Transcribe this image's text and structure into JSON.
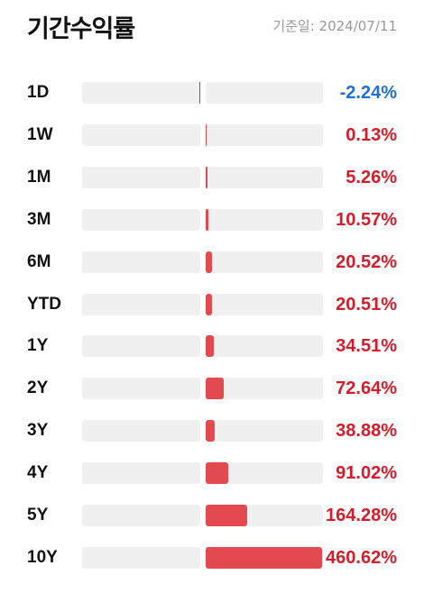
{
  "header": {
    "title": "기간수익률",
    "date": "기준일: 2024/07/11"
  },
  "colors": {
    "positive": "#e24a4f",
    "negative": "#2f6fd4",
    "positive_text": "#d81b2a",
    "negative_text": "#1f6fd6",
    "track": "#f0f0f0"
  },
  "chart_data": {
    "type": "bar",
    "title": "기간수익률",
    "orientation": "horizontal-diverging",
    "categories": [
      "1D",
      "1W",
      "1M",
      "3M",
      "6M",
      "YTD",
      "1Y",
      "2Y",
      "3Y",
      "4Y",
      "5Y",
      "10Y"
    ],
    "values": [
      -2.24,
      0.13,
      5.26,
      10.57,
      20.52,
      20.51,
      34.51,
      72.64,
      38.88,
      91.02,
      164.28,
      460.62
    ],
    "value_labels": [
      "-2.24%",
      "0.13%",
      "5.26%",
      "10.57%",
      "20.52%",
      "20.51%",
      "34.51%",
      "72.64%",
      "38.88%",
      "91.02%",
      "164.28%",
      "460.62%"
    ],
    "bar_fill_fraction": [
      0.004,
      0.01,
      0.015,
      0.025,
      0.05,
      0.05,
      0.07,
      0.15,
      0.08,
      0.19,
      0.35,
      0.99
    ],
    "unit": "%"
  }
}
